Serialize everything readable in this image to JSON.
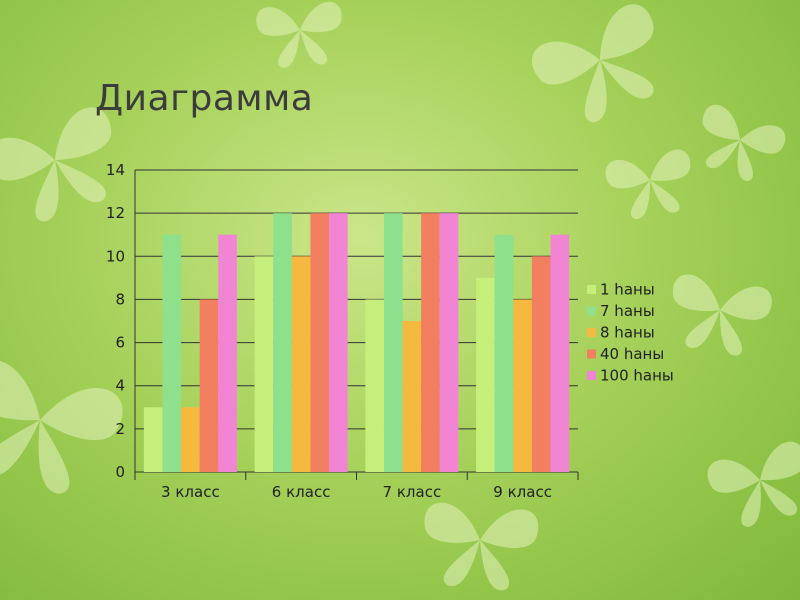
{
  "colors": {
    "background": "#a6d15a",
    "butterfly": "#d8eda8"
  },
  "chart_data": {
    "type": "bar",
    "title": "Диаграмма",
    "categories": [
      "3 класс",
      "6 класс",
      "7 класс",
      "9 класс"
    ],
    "series": [
      {
        "name": "1 hаны",
        "values": [
          3,
          10,
          8,
          9
        ],
        "color": "#c6ee7a"
      },
      {
        "name": "7 hаны",
        "values": [
          11,
          12,
          12,
          11
        ],
        "color": "#8ee08c"
      },
      {
        "name": "8 hаны",
        "values": [
          3,
          10,
          7,
          8
        ],
        "color": "#f6b93f"
      },
      {
        "name": "40 hаны",
        "values": [
          8,
          12,
          12,
          10
        ],
        "color": "#f27f5f"
      },
      {
        "name": "100 hаны",
        "values": [
          11,
          12,
          12,
          11
        ],
        "color": "#f284d4"
      }
    ],
    "ylim": [
      0,
      14
    ],
    "yticks": [
      0,
      2,
      4,
      6,
      8,
      10,
      12,
      14
    ],
    "grid": true,
    "legend": "right"
  }
}
